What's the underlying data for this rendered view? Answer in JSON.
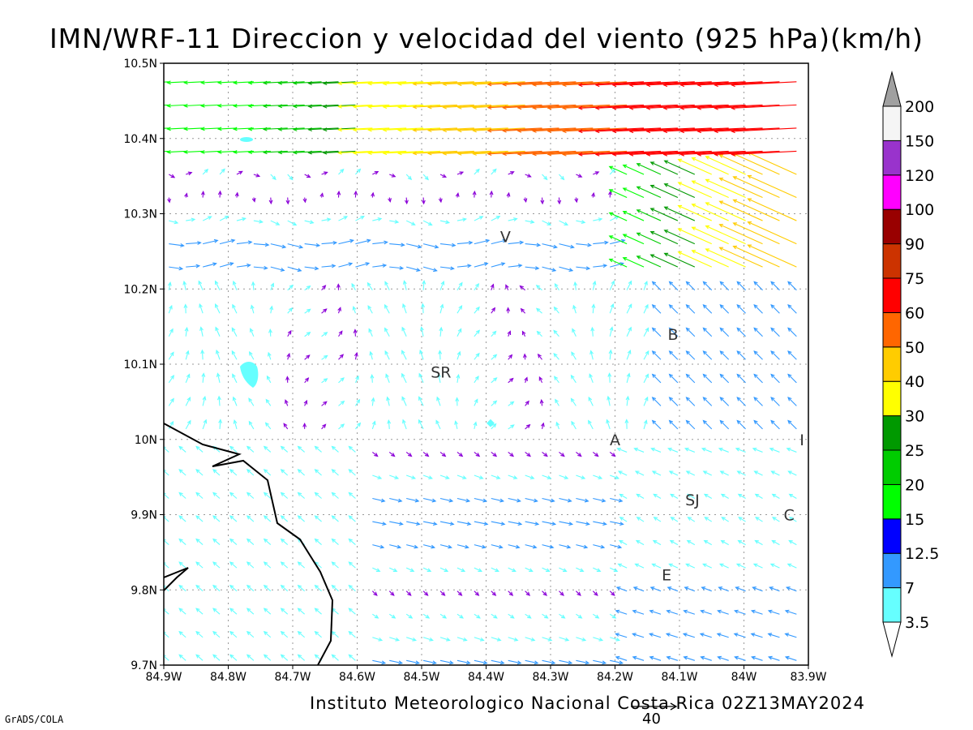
{
  "header": {
    "title": "IMN/WRF-11 Direccion y velocidad del viento (925 hPa)(km/h)"
  },
  "footer": {
    "credit": "Instituto Meteorologico Nacional Costa Rica 02Z13MAY2024",
    "software": "GrADS/COLA",
    "reference_vector_value": "40"
  },
  "map": {
    "lon_range": [
      -84.9,
      -83.9
    ],
    "lat_range": [
      9.7,
      10.5
    ],
    "x_ticks": [
      "84.9W",
      "84.8W",
      "84.7W",
      "84.6W",
      "84.5W",
      "84.4W",
      "84.3W",
      "84.2W",
      "84.1W",
      "84W",
      "83.9W"
    ],
    "y_ticks": [
      "9.7N",
      "9.8N",
      "9.9N",
      "10N",
      "10.1N",
      "10.2N",
      "10.3N",
      "10.4N",
      "10.5N"
    ],
    "grid": true,
    "cities": [
      {
        "label": "V",
        "lon": -84.37,
        "lat": 10.27
      },
      {
        "label": "B",
        "lon": -84.11,
        "lat": 10.14
      },
      {
        "label": "SR",
        "lon": -84.47,
        "lat": 10.09
      },
      {
        "label": "A",
        "lon": -84.2,
        "lat": 10.0
      },
      {
        "label": "I",
        "lon": -83.91,
        "lat": 10.0
      },
      {
        "label": "SJ",
        "lon": -84.08,
        "lat": 9.92
      },
      {
        "label": "C",
        "lon": -83.93,
        "lat": 9.9
      },
      {
        "label": "E",
        "lon": -84.12,
        "lat": 9.82
      }
    ]
  },
  "colorbar": {
    "levels": [
      "3.5",
      "7",
      "12.5",
      "15",
      "20",
      "25",
      "30",
      "40",
      "50",
      "60",
      "75",
      "90",
      "100",
      "120",
      "150",
      "200"
    ],
    "colors": [
      "#66ffff",
      "#3399ff",
      "#0000ff",
      "#00ff00",
      "#00cc00",
      "#009900",
      "#ffff00",
      "#ffcc00",
      "#ff6600",
      "#ff0000",
      "#cc3300",
      "#990000",
      "#ff00ff",
      "#9933cc",
      "#f5f5f5",
      "#a0a0a0"
    ]
  }
}
